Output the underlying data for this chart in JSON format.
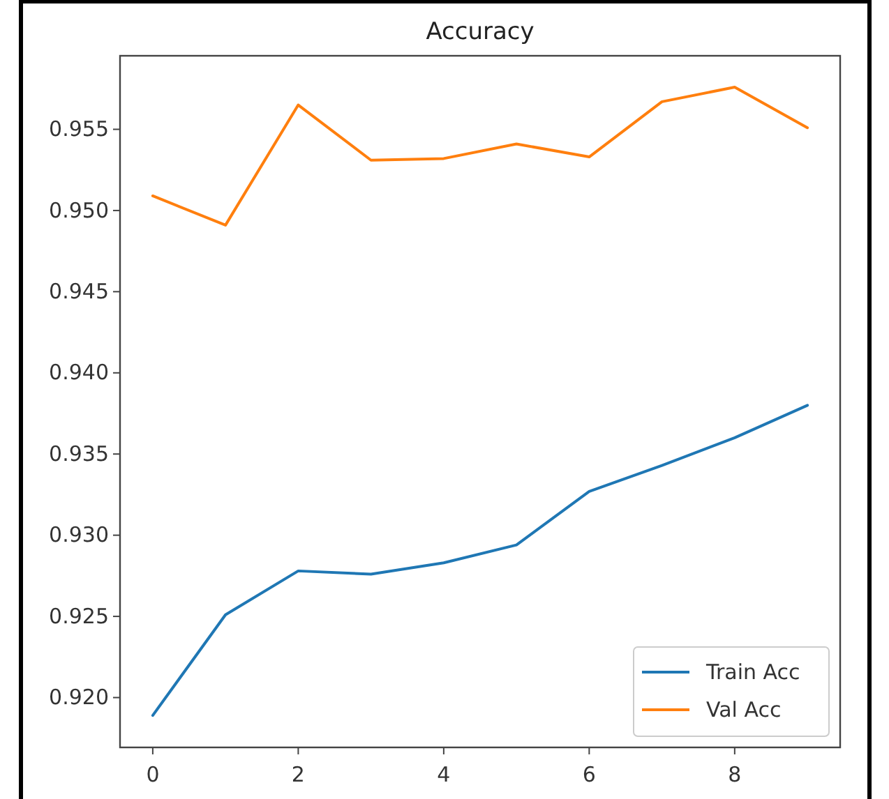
{
  "chart_data": {
    "type": "line",
    "title": "Accuracy",
    "x": [
      0,
      1,
      2,
      3,
      4,
      5,
      6,
      7,
      8,
      9
    ],
    "series": [
      {
        "name": "Train Acc",
        "color": "#1f77b4",
        "values": [
          0.9189,
          0.9251,
          0.9278,
          0.9276,
          0.9283,
          0.9294,
          0.9327,
          0.9343,
          0.936,
          0.938
        ]
      },
      {
        "name": "Val Acc",
        "color": "#ff7f0e",
        "values": [
          0.9509,
          0.9491,
          0.9565,
          0.9531,
          0.9532,
          0.9541,
          0.9533,
          0.9567,
          0.9576,
          0.9551
        ]
      }
    ],
    "xlim": [
      -0.45,
      9.45
    ],
    "xticks": [
      0,
      2,
      4,
      6,
      8
    ],
    "ylim": [
      0.91693,
      0.95953
    ],
    "yticks": [
      {
        "value": 0.92,
        "label": "0.920"
      },
      {
        "value": 0.925,
        "label": "0.925"
      },
      {
        "value": 0.93,
        "label": "0.930"
      },
      {
        "value": 0.935,
        "label": "0.935"
      },
      {
        "value": 0.94,
        "label": "0.940"
      },
      {
        "value": 0.945,
        "label": "0.945"
      },
      {
        "value": 0.95,
        "label": "0.950"
      },
      {
        "value": 0.955,
        "label": "0.955"
      }
    ],
    "legend": "bottom right"
  }
}
